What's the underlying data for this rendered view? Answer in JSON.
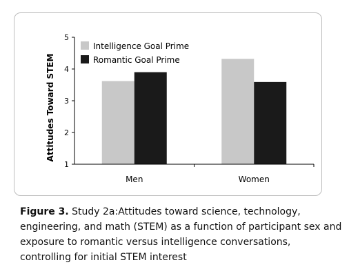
{
  "chart_data": {
    "type": "bar",
    "categories": [
      "Men",
      "Women"
    ],
    "series": [
      {
        "name": "Intelligence Goal Prime",
        "values": [
          3.62,
          4.32
        ],
        "color": "#c8c8c8"
      },
      {
        "name": "Romantic Goal Prime",
        "values": [
          3.9,
          3.59
        ],
        "color": "#1a1a1a"
      }
    ],
    "xlabel": "",
    "ylabel": "Attitudes Toward STEM",
    "ylim": [
      1,
      5
    ],
    "yticks": [
      1,
      2,
      3,
      4,
      5
    ],
    "grid": false,
    "legend_position": "top-left"
  },
  "caption": {
    "label": "Figure 3.",
    "text": " Study 2a:Attitudes toward science, technology, engineering, and math (STEM) as a function of participant sex and exposure to romantic versus intelligence conversations, controlling for initial STEM interest"
  }
}
